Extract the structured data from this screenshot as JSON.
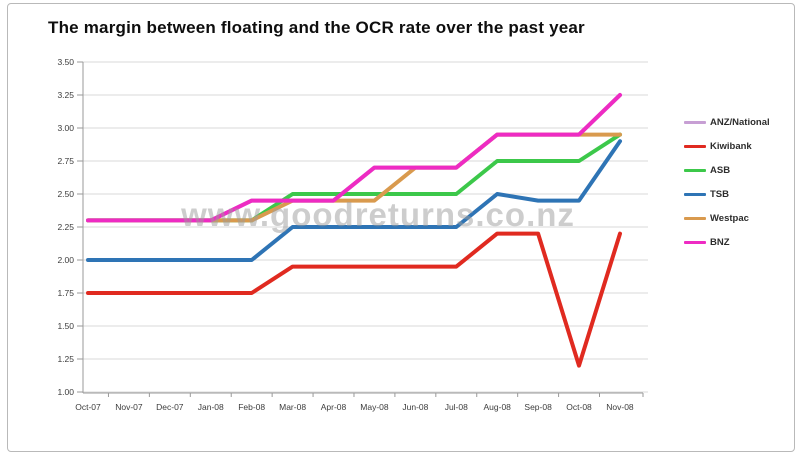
{
  "chart": {
    "title": "The margin between floating and the OCR rate over the past year"
  },
  "watermark": {
    "text": "www.goodreturns.co.nz"
  },
  "colors": {
    "background": "#ffffff",
    "frame_border": "#b9b9b9",
    "gridline": "#d9d9d9",
    "axis": "#9a9a9a",
    "tick_label": "#3c3c3c",
    "title_text": "#0e0e0e",
    "watermark_text": "#9d9d9d"
  },
  "chart_data": {
    "type": "line",
    "title": "The margin between floating and the OCR rate over the past year",
    "xlabel": "",
    "ylabel": "",
    "ylim": [
      1.0,
      3.5
    ],
    "y_tick_step": 0.25,
    "y_ticks": [
      "3.50",
      "3.25",
      "3.00",
      "2.75",
      "2.50",
      "2.25",
      "2.00",
      "1.75",
      "1.50",
      "1.25",
      "1.00"
    ],
    "grid": "horizontal",
    "legend_position": "right",
    "categories": [
      "Oct-07",
      "Nov-07",
      "Dec-07",
      "Jan-08",
      "Feb-08",
      "Mar-08",
      "Apr-08",
      "May-08",
      "Jun-08",
      "Jul-08",
      "Aug-08",
      "Sep-08",
      "Oct-08",
      "Nov-08"
    ],
    "series": [
      {
        "name": "ANZ/National",
        "color": "#c79fd4",
        "values": [
          2.3,
          2.3,
          2.3,
          2.3,
          2.45,
          2.45,
          2.45,
          2.7,
          2.7,
          2.7,
          2.95,
          2.95,
          2.95,
          3.25
        ]
      },
      {
        "name": "Kiwibank",
        "color": "#e02a20",
        "values": [
          1.75,
          1.75,
          1.75,
          1.75,
          1.75,
          1.95,
          1.95,
          1.95,
          1.95,
          1.95,
          2.2,
          2.2,
          1.2,
          2.2
        ]
      },
      {
        "name": "ASB",
        "color": "#3cc84a",
        "values": [
          2.3,
          2.3,
          2.3,
          2.3,
          2.3,
          2.5,
          2.5,
          2.5,
          2.5,
          2.5,
          2.75,
          2.75,
          2.75,
          2.95
        ]
      },
      {
        "name": "TSB",
        "color": "#2e74b5",
        "values": [
          2.0,
          2.0,
          2.0,
          2.0,
          2.0,
          2.25,
          2.25,
          2.25,
          2.25,
          2.25,
          2.5,
          2.45,
          2.45,
          2.9
        ]
      },
      {
        "name": "Westpac",
        "color": "#d99a4e",
        "values": [
          2.3,
          2.3,
          2.3,
          2.3,
          2.3,
          2.45,
          2.45,
          2.45,
          2.7,
          2.7,
          2.95,
          2.95,
          2.95,
          2.95
        ]
      },
      {
        "name": "BNZ",
        "color": "#ee2bc3",
        "values": [
          2.3,
          2.3,
          2.3,
          2.3,
          2.45,
          2.45,
          2.45,
          2.7,
          2.7,
          2.7,
          2.95,
          2.95,
          2.95,
          3.25
        ]
      }
    ]
  }
}
